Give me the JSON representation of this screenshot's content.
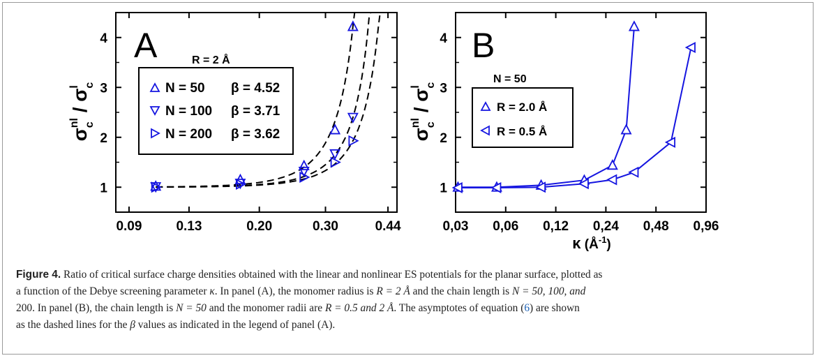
{
  "colors": {
    "marker": "#1515e0",
    "fit": "#000000",
    "ref_link": "#1a5fb4"
  },
  "chart_data": [
    {
      "panel": "A",
      "type": "scatter",
      "xscale": "log",
      "xticks": [
        "0.09",
        "0.13",
        "0.20",
        "0.30",
        "0.44"
      ],
      "xtick_values": [
        0.09,
        0.13,
        0.2,
        0.3,
        0.44
      ],
      "yticks": [
        "1",
        "2",
        "3",
        "4"
      ],
      "ylim": [
        0.5,
        4.5
      ],
      "xlim": [
        0.083,
        0.465
      ],
      "ylabel": {
        "base": "σ",
        "sub": "c",
        "sup1": "nl",
        "sep": " / ",
        "sup2": "l"
      },
      "annotation": "R = 2 Å",
      "legend": [
        {
          "marker": "up",
          "label": "N = 50",
          "beta": "β = 4.52"
        },
        {
          "marker": "down",
          "label": "N = 100",
          "beta": "β = 3.71"
        },
        {
          "marker": "right",
          "label": "N = 200",
          "beta": "β = 3.62"
        }
      ],
      "series": [
        {
          "marker": "up",
          "beta": 4.52,
          "x": [
            0.106,
            0.178,
            0.263,
            0.318,
            0.355
          ],
          "y": [
            1.02,
            1.15,
            1.43,
            2.15,
            4.22
          ]
        },
        {
          "marker": "down",
          "beta": 3.71,
          "x": [
            0.106,
            0.178,
            0.263,
            0.318,
            0.355
          ],
          "y": [
            1.01,
            1.08,
            1.32,
            1.67,
            2.4
          ]
        },
        {
          "marker": "right",
          "beta": 3.62,
          "x": [
            0.106,
            0.178,
            0.263,
            0.318,
            0.355
          ],
          "y": [
            1.0,
            1.06,
            1.2,
            1.5,
            1.93
          ]
        }
      ],
      "fit_lines": "dashed"
    },
    {
      "panel": "B",
      "type": "line",
      "xscale": "log",
      "xticks": [
        "0,03",
        "0,06",
        "0,12",
        "0,24",
        "0,48",
        "0,96"
      ],
      "xtick_values": [
        0.03,
        0.06,
        0.12,
        0.24,
        0.48,
        0.96
      ],
      "yticks": [
        "1",
        "2",
        "3",
        "4"
      ],
      "ylim": [
        0.5,
        4.5
      ],
      "xlim": [
        0.03,
        0.96
      ],
      "xlabel": {
        "base": "κ",
        "unit": "Å",
        "exp": "-1"
      },
      "ylabel": {
        "base": "σ",
        "sub": "c",
        "sup1": "nl",
        "sep": " / ",
        "sup2": "l"
      },
      "annotation": "N = 50",
      "legend": [
        {
          "marker": "up",
          "label": "R = 2.0 Å"
        },
        {
          "marker": "left",
          "label": "R = 0.5 Å"
        }
      ],
      "series": [
        {
          "marker": "up",
          "x": [
            0.031,
            0.053,
            0.098,
            0.178,
            0.263,
            0.318,
            0.355
          ],
          "y": [
            1.0,
            1.0,
            1.04,
            1.14,
            1.44,
            2.15,
            4.22
          ]
        },
        {
          "marker": "left",
          "x": [
            0.031,
            0.053,
            0.098,
            0.178,
            0.263,
            0.355,
            0.59,
            0.78
          ],
          "y": [
            0.99,
            0.99,
            1.0,
            1.07,
            1.15,
            1.3,
            1.9,
            3.8
          ]
        }
      ]
    }
  ],
  "caption": {
    "label": "Figure 4.",
    "line1": " Ratio of critical surface charge densities obtained with the linear and nonlinear ES potentials for the planar surface, plotted as",
    "line2a": "a function of the Debye screening parameter ",
    "kappa": "κ",
    "line2b": ". In panel (A), the monomer radius is ",
    "R_eq_2": "R = 2 Å",
    "line2c": " and the chain length is ",
    "N_eq_list": "N = 50, 100, and",
    "line3a": "200. In panel (B), the chain length is ",
    "N_eq_50": "N = 50",
    "line3b": " and the monomer radii are ",
    "R_eq_list": "R = 0.5 and 2 Å",
    "line3c": ". The asymptotes of equation (",
    "eq_ref": "6",
    "line3d": ") are shown",
    "line4a": "as the dashed lines for the ",
    "beta": "β",
    "line4b": " values as indicated in the legend of panel (A)."
  }
}
